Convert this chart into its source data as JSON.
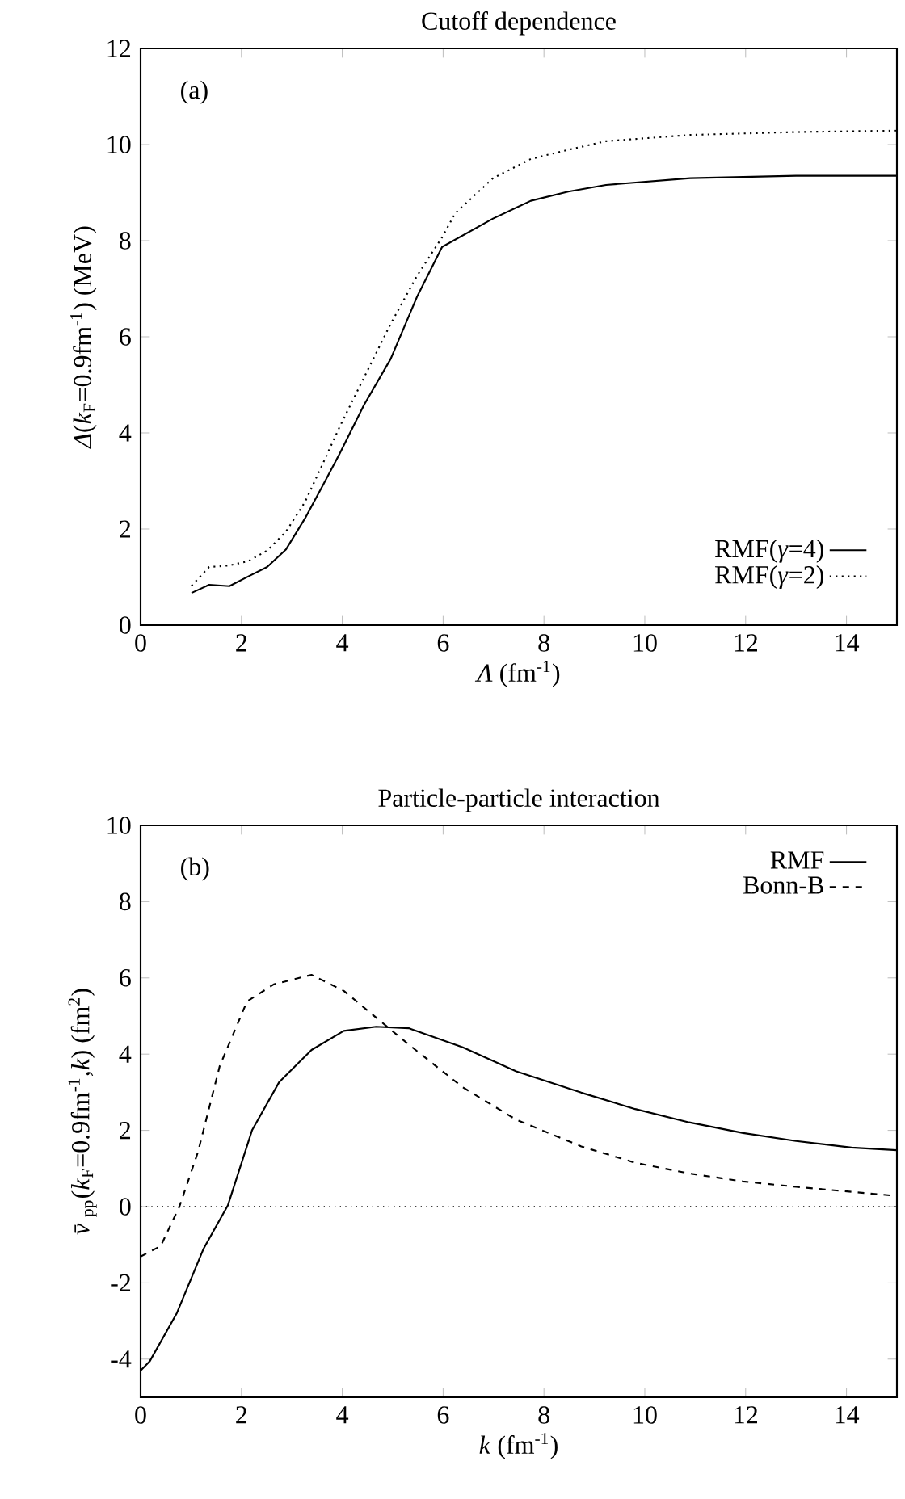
{
  "chart_data": [
    {
      "type": "line",
      "title": "Cutoff dependence",
      "xlabel": "*Λ* (fm$^{-1}$)",
      "ylabel": "*Δ*(*k*$_{F}$=0.9fm$^{-1}$) (MeV)",
      "annotations": [
        "(a)"
      ],
      "xlim": [
        0,
        15
      ],
      "ylim": [
        0,
        12
      ],
      "xticks": [
        0,
        2,
        4,
        6,
        8,
        10,
        12,
        14
      ],
      "yticks": [
        0,
        2,
        4,
        6,
        8,
        10,
        12
      ],
      "legend": "bottom right",
      "grid": false,
      "marker": "none",
      "series": [
        {
          "name": "RMF(*γ*=4)",
          "color": "#000000",
          "line_style": "solid",
          "x": [
            1.01,
            1.36,
            1.76,
            2.13,
            2.51,
            2.88,
            3.26,
            3.61,
            3.95,
            4.43,
            4.96,
            5.49,
            5.98,
            6.99,
            7.74,
            8.48,
            9.23,
            10.9,
            13.0,
            15
          ],
          "values": [
            0.67,
            0.84,
            0.81,
            1.01,
            1.21,
            1.57,
            2.22,
            2.9,
            3.57,
            4.58,
            5.54,
            6.85,
            7.87,
            8.46,
            8.83,
            9.02,
            9.16,
            9.3,
            9.35,
            9.35
          ]
        },
        {
          "name": "RMF(*γ*=2)",
          "color": "#000000",
          "line_style": "dotted",
          "x": [
            1.01,
            1.36,
            1.76,
            2.13,
            2.51,
            2.88,
            3.26,
            3.61,
            3.95,
            4.43,
            4.96,
            5.49,
            5.98,
            6.24,
            6.99,
            7.74,
            8.48,
            9.23,
            10.9,
            13.0,
            15
          ],
          "values": [
            0.82,
            1.21,
            1.24,
            1.33,
            1.55,
            1.94,
            2.56,
            3.35,
            4.13,
            5.15,
            6.27,
            7.28,
            8.07,
            8.57,
            9.3,
            9.7,
            9.89,
            10.07,
            10.2,
            10.26,
            10.29
          ]
        }
      ]
    },
    {
      "type": "line",
      "title": "Particle-particle interaction",
      "xlabel": "*k* (fm$^{-1}$)",
      "ylabel": "*v̄*$_{pp}$(*k*$_{F}$=0.9fm$^{-1}$,*k*) (fm$^{2}$)",
      "annotations": [
        "(b)"
      ],
      "xlim": [
        0,
        15
      ],
      "ylim": [
        -5,
        10
      ],
      "xticks": [
        0,
        2,
        4,
        6,
        8,
        10,
        12,
        14
      ],
      "yticks": [
        -4,
        -2,
        0,
        2,
        4,
        6,
        8,
        10
      ],
      "legend": "top right",
      "grid": false,
      "marker": "none",
      "ref_lines": [
        {
          "axis": "y",
          "value": 0,
          "color": "#000000",
          "line_style": "dotted"
        }
      ],
      "series": [
        {
          "name": "RMF",
          "color": "#000000",
          "line_style": "solid",
          "x": [
            0,
            0.18,
            0.72,
            1.25,
            1.73,
            2.21,
            2.75,
            3.39,
            4.03,
            4.67,
            5.32,
            6.39,
            7.45,
            8.74,
            9.81,
            10.88,
            11.95,
            13.0,
            14.1,
            15
          ],
          "values": [
            -4.3,
            -4.06,
            -2.79,
            -1.1,
            0.03,
            2.0,
            3.27,
            4.11,
            4.61,
            4.72,
            4.68,
            4.18,
            3.55,
            2.99,
            2.56,
            2.21,
            1.93,
            1.72,
            1.55,
            1.48
          ]
        },
        {
          "name": "Bonn-B",
          "color": "#000000",
          "line_style": "dashed",
          "x": [
            0,
            0.4,
            0.77,
            1.14,
            1.57,
            2.11,
            2.64,
            3.39,
            4.03,
            4.67,
            5.32,
            6.39,
            7.45,
            8.74,
            9.81,
            10.88,
            11.95,
            13.0,
            15
          ],
          "values": [
            -1.31,
            -1.03,
            0,
            1.44,
            3.69,
            5.38,
            5.83,
            6.08,
            5.66,
            4.96,
            4.25,
            3.13,
            2.28,
            1.58,
            1.15,
            0.87,
            0.66,
            0.52,
            0.28
          ]
        }
      ]
    }
  ]
}
